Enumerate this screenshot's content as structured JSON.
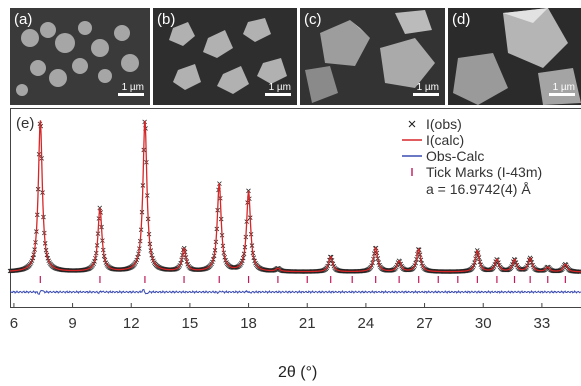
{
  "sem_panels": [
    {
      "label": "(a)",
      "scale": "1 µm"
    },
    {
      "label": "(b)",
      "scale": "1 µm"
    },
    {
      "label": "(c)",
      "scale": "1 µm"
    },
    {
      "label": "(d)",
      "scale": "1 µm"
    }
  ],
  "chart_data": {
    "type": "line",
    "panel_label": "(e)",
    "xlabel": "2θ (°)",
    "ylabel": "",
    "xlim": [
      5.8,
      35.0
    ],
    "x_ticks": [
      "6",
      "9",
      "12",
      "15",
      "18",
      "21",
      "24",
      "27",
      "30",
      "33"
    ],
    "x_tick_values": [
      6,
      9,
      12,
      15,
      18,
      21,
      24,
      27,
      30,
      33
    ],
    "grid": false,
    "legend_position": "top-right",
    "legend": [
      {
        "label": "I(obs)",
        "color": "#222222",
        "marker": "x"
      },
      {
        "label": "I(calc)",
        "color": "#d62728",
        "marker": "line"
      },
      {
        "label": "Obs-Calc",
        "color": "#3a4bb0",
        "marker": "line"
      },
      {
        "label": "Tick Marks (I-43m)",
        "color": "#c2185b",
        "marker": "tick"
      }
    ],
    "annotation": "a = 16.9742(4) Å",
    "background_level": 0.0,
    "peaks": [
      {
        "x": 7.35,
        "intensity": 1.0
      },
      {
        "x": 10.4,
        "intensity": 0.42
      },
      {
        "x": 12.7,
        "intensity": 1.0
      },
      {
        "x": 14.7,
        "intensity": 0.15
      },
      {
        "x": 16.5,
        "intensity": 0.58
      },
      {
        "x": 18.0,
        "intensity": 0.53
      },
      {
        "x": 19.5,
        "intensity": 0.02
      },
      {
        "x": 22.2,
        "intensity": 0.1
      },
      {
        "x": 24.5,
        "intensity": 0.16
      },
      {
        "x": 25.7,
        "intensity": 0.07
      },
      {
        "x": 26.7,
        "intensity": 0.15
      },
      {
        "x": 29.7,
        "intensity": 0.14
      },
      {
        "x": 30.7,
        "intensity": 0.08
      },
      {
        "x": 31.6,
        "intensity": 0.08
      },
      {
        "x": 32.4,
        "intensity": 0.09
      },
      {
        "x": 33.3,
        "intensity": 0.03
      },
      {
        "x": 34.2,
        "intensity": 0.05
      }
    ],
    "tick_marks": [
      7.35,
      10.4,
      12.7,
      14.7,
      16.5,
      18.0,
      19.5,
      21.0,
      22.2,
      23.3,
      24.5,
      25.7,
      26.7,
      27.7,
      28.7,
      29.7,
      30.7,
      31.6,
      32.4,
      33.3,
      34.2
    ],
    "diff_features": [
      {
        "x": 7.35,
        "amp": 0.9
      },
      {
        "x": 12.7,
        "amp": -1.0
      },
      {
        "x": 10.4,
        "amp": 0.3
      },
      {
        "x": 16.5,
        "amp": 0.3
      },
      {
        "x": 18.0,
        "amp": -0.3
      }
    ]
  }
}
